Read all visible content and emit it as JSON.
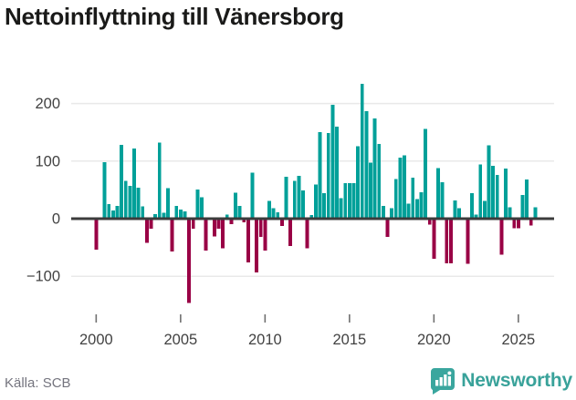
{
  "title": "Nettoinflyttning till Vänersborg",
  "footer": {
    "source": "Källa: SCB",
    "brand": "Newsworthy"
  },
  "colors": {
    "positive": "#00a099",
    "negative": "#990045",
    "brand": "#3aa69e",
    "axis": "#3c3c3c",
    "grid": "#e9e9e9",
    "tick_mark": "#707070",
    "tick_label": "#424242"
  },
  "chart_data": {
    "type": "bar",
    "title": "Nettoinflyttning till Vänersborg",
    "x_unit": "quarter",
    "grid": "horizontal",
    "legend": "none",
    "ylim": [
      -160,
      250
    ],
    "y_ticks": [
      -100,
      0,
      100,
      200
    ],
    "x_tick_labels": [
      "2000",
      "2005",
      "2010",
      "2015",
      "2020",
      "2025"
    ],
    "x_tick_indices": [
      0,
      20,
      40,
      60,
      80,
      100
    ],
    "categories": [
      "2000-Q1",
      "2000-Q2",
      "2000-Q3",
      "2000-Q4",
      "2001-Q1",
      "2001-Q2",
      "2001-Q3",
      "2001-Q4",
      "2002-Q1",
      "2002-Q2",
      "2002-Q3",
      "2002-Q4",
      "2003-Q1",
      "2003-Q2",
      "2003-Q3",
      "2003-Q4",
      "2004-Q1",
      "2004-Q2",
      "2004-Q3",
      "2004-Q4",
      "2005-Q1",
      "2005-Q2",
      "2005-Q3",
      "2005-Q4",
      "2006-Q1",
      "2006-Q2",
      "2006-Q3",
      "2006-Q4",
      "2007-Q1",
      "2007-Q2",
      "2007-Q3",
      "2007-Q4",
      "2008-Q1",
      "2008-Q2",
      "2008-Q3",
      "2008-Q4",
      "2009-Q1",
      "2009-Q2",
      "2009-Q3",
      "2009-Q4",
      "2010-Q1",
      "2010-Q2",
      "2010-Q3",
      "2010-Q4",
      "2011-Q1",
      "2011-Q2",
      "2011-Q3",
      "2011-Q4",
      "2012-Q1",
      "2012-Q2",
      "2012-Q3",
      "2012-Q4",
      "2013-Q1",
      "2013-Q2",
      "2013-Q3",
      "2013-Q4",
      "2014-Q1",
      "2014-Q2",
      "2014-Q3",
      "2014-Q4",
      "2015-Q1",
      "2015-Q2",
      "2015-Q3",
      "2015-Q4",
      "2016-Q1",
      "2016-Q2",
      "2016-Q3",
      "2016-Q4",
      "2017-Q1",
      "2017-Q2",
      "2017-Q3",
      "2017-Q4",
      "2018-Q1",
      "2018-Q2",
      "2018-Q3",
      "2018-Q4",
      "2019-Q1",
      "2019-Q2",
      "2019-Q3",
      "2019-Q4",
      "2020-Q1",
      "2020-Q2",
      "2020-Q3",
      "2020-Q4",
      "2021-Q1",
      "2021-Q2",
      "2021-Q3",
      "2021-Q4",
      "2022-Q1",
      "2022-Q2",
      "2022-Q3",
      "2022-Q4",
      "2023-Q1",
      "2023-Q2",
      "2023-Q3",
      "2023-Q4",
      "2024-Q1",
      "2024-Q2",
      "2024-Q3",
      "2024-Q4",
      "2025-Q1",
      "2025-Q2",
      "2025-Q3",
      "2025-Q4",
      "2026-Q1"
    ],
    "values": [
      -52,
      0,
      98,
      25,
      14,
      22,
      128,
      66,
      57,
      122,
      54,
      21,
      -40,
      -16,
      8,
      132,
      10,
      53,
      -55,
      22,
      16,
      13,
      -145,
      -16,
      51,
      37,
      -54,
      0,
      -29,
      -16,
      -50,
      7,
      -8,
      45,
      22,
      -5,
      -74,
      80,
      -92,
      -30,
      -54,
      31,
      18,
      11,
      -11,
      73,
      -46,
      66,
      74,
      49,
      -50,
      6,
      59,
      150,
      44,
      149,
      198,
      160,
      36,
      62,
      62,
      62,
      126,
      234,
      187,
      97,
      174,
      130,
      22,
      -30,
      18,
      69,
      106,
      110,
      26,
      71,
      34,
      46,
      156,
      -9,
      -68,
      88,
      63,
      -76,
      -76,
      32,
      18,
      0,
      -77,
      44,
      7,
      94,
      31,
      127,
      92,
      76,
      -61,
      87,
      20,
      -15,
      -15,
      41,
      68,
      -10,
      20
    ]
  }
}
